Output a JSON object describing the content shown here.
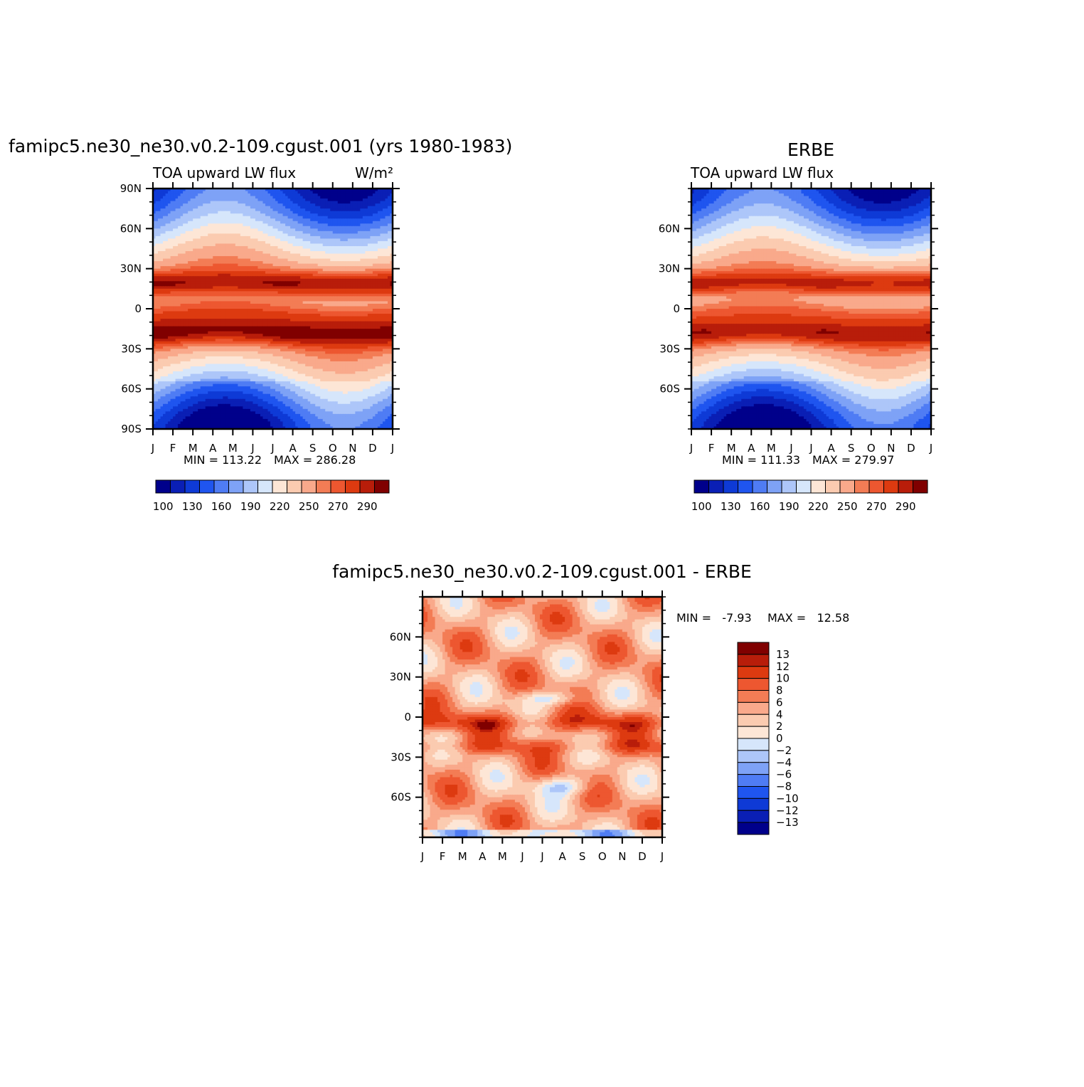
{
  "palette": [
    "#00008b",
    "#0a1fb5",
    "#0e3ad6",
    "#1f55ef",
    "#4f7cf4",
    "#7ea2f6",
    "#adc6f9",
    "#d6e6fb",
    "#fde6d6",
    "#fbcbb0",
    "#f9a98b",
    "#f37c55",
    "#ed5730",
    "#dd3a10",
    "#b81d0a",
    "#800000"
  ],
  "chart_data": [
    {
      "type": "heatmap",
      "id": "model",
      "title": "famipc5.ne30_ne30.v0.2-109.cgust.001 (yrs 1980-1983)",
      "subtitle_left": "TOA upward LW flux",
      "subtitle_right": "W/m²",
      "x_ticklabels": [
        "J",
        "F",
        "M",
        "A",
        "M",
        "J",
        "J",
        "A",
        "S",
        "O",
        "N",
        "D",
        "J"
      ],
      "y_ticklabels": [
        "90N",
        "60N",
        "30N",
        "0",
        "30S",
        "60S",
        "90S"
      ],
      "y_tickvalues": [
        90,
        60,
        30,
        0,
        -30,
        -60,
        -90
      ],
      "ylim": [
        -90,
        90
      ],
      "min_label": "MIN = 113.22",
      "max_label": "MAX = 286.28",
      "min": 113.22,
      "max": 286.28,
      "levels": [
        100,
        115,
        130,
        145,
        160,
        175,
        190,
        205,
        220,
        235,
        250,
        260,
        270,
        280,
        290
      ],
      "colorbar_labels": [
        "100",
        "130",
        "160",
        "190",
        "220",
        "250",
        "270",
        "290"
      ],
      "field": {
        "mean_amp": 1.0,
        "seasonal_amp": 1.0,
        "polar_shift": 0
      }
    },
    {
      "type": "heatmap",
      "id": "obs",
      "title": "ERBE",
      "subtitle_left": "TOA upward LW flux",
      "x_ticklabels": [
        "J",
        "F",
        "M",
        "A",
        "M",
        "J",
        "J",
        "A",
        "S",
        "O",
        "N",
        "D",
        "J"
      ],
      "y_ticklabels": [
        "60N",
        "30N",
        "0",
        "30S",
        "60S"
      ],
      "y_tickvalues": [
        60,
        30,
        0,
        -30,
        -60
      ],
      "ylim": [
        -90,
        90
      ],
      "min_label": "MIN = 111.33",
      "max_label": "MAX = 279.97",
      "min": 111.33,
      "max": 279.97,
      "levels": [
        100,
        115,
        130,
        145,
        160,
        175,
        190,
        205,
        220,
        235,
        250,
        260,
        270,
        280,
        290
      ],
      "colorbar_labels": [
        "100",
        "130",
        "160",
        "190",
        "220",
        "250",
        "270",
        "290"
      ],
      "field": {
        "mean_amp": 0.97,
        "seasonal_amp": 0.95,
        "polar_shift": -2
      }
    },
    {
      "type": "heatmap",
      "id": "diff",
      "title": "famipc5.ne30_ne30.v0.2-109.cgust.001 - ERBE",
      "x_ticklabels": [
        "J",
        "F",
        "M",
        "A",
        "M",
        "J",
        "J",
        "A",
        "S",
        "O",
        "N",
        "D",
        "J"
      ],
      "y_ticklabels": [
        "60N",
        "30N",
        "0",
        "30S",
        "60S"
      ],
      "y_tickvalues": [
        60,
        30,
        0,
        -30,
        -60
      ],
      "ylim": [
        -90,
        90
      ],
      "min_label": "MIN =   -7.93",
      "max_label": "MAX =   12.58",
      "min": -7.93,
      "max": 12.58,
      "levels": [
        -13,
        -12,
        -10,
        -8,
        -6,
        -4,
        -2,
        0,
        2,
        4,
        6,
        8,
        10,
        12,
        13
      ],
      "colorbar_labels": [
        "13",
        "12",
        "10",
        "8",
        "6",
        "4",
        "2",
        "0",
        "−2",
        "−4",
        "−6",
        "−8",
        "−10",
        "−12",
        "−13"
      ]
    }
  ]
}
